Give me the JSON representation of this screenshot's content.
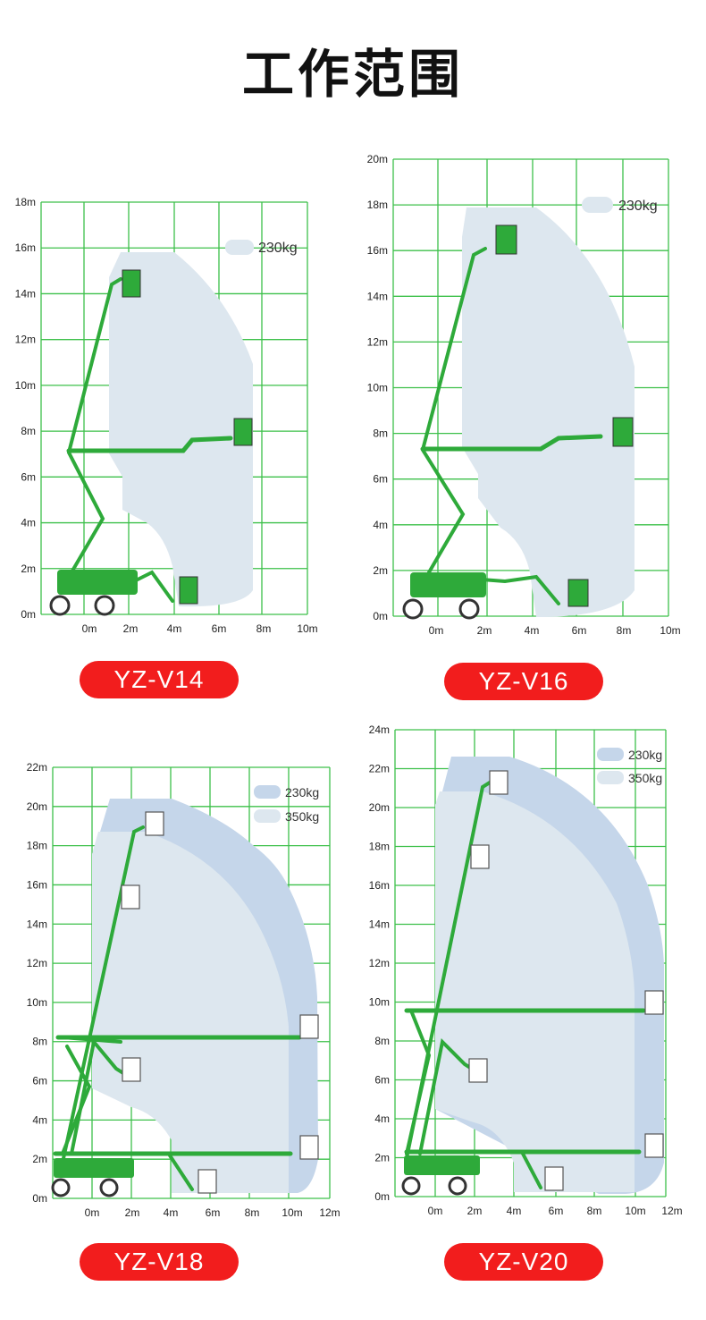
{
  "title": "工作范围",
  "colors": {
    "grid": "#3dc04a",
    "machine": "#2eaa3a",
    "load_230": "#c5d6ea",
    "load_350": "#dde7ef",
    "label_bg": "#f21d1d"
  },
  "panels": [
    {
      "model": "YZ-V14",
      "y_ticks": [
        "0m",
        "2m",
        "4m",
        "6m",
        "8m",
        "10m",
        "12m",
        "14m",
        "16m",
        "18m"
      ],
      "x_ticks": [
        "0m",
        "2m",
        "4m",
        "6m",
        "8m",
        "10m"
      ],
      "legend": [
        {
          "label": "230kg"
        }
      ]
    },
    {
      "model": "YZ-V16",
      "y_ticks": [
        "0m",
        "2m",
        "4m",
        "6m",
        "8m",
        "10m",
        "12m",
        "14m",
        "16m",
        "18m",
        "20m"
      ],
      "x_ticks": [
        "0m",
        "2m",
        "4m",
        "6m",
        "8m",
        "10m"
      ],
      "legend": [
        {
          "label": "230kg"
        }
      ]
    },
    {
      "model": "YZ-V18",
      "y_ticks": [
        "0m",
        "2m",
        "4m",
        "6m",
        "8m",
        "10m",
        "12m",
        "14m",
        "16m",
        "18m",
        "20m",
        "22m"
      ],
      "x_ticks": [
        "0m",
        "2m",
        "4m",
        "6m",
        "8m",
        "10m",
        "12m"
      ],
      "legend": [
        {
          "label": "230kg"
        },
        {
          "label": "350kg"
        }
      ]
    },
    {
      "model": "YZ-V20",
      "y_ticks": [
        "0m",
        "2m",
        "4m",
        "6m",
        "8m",
        "10m",
        "12m",
        "14m",
        "16m",
        "18m",
        "20m",
        "22m",
        "24m"
      ],
      "x_ticks": [
        "0m",
        "2m",
        "4m",
        "6m",
        "8m",
        "10m",
        "12m"
      ],
      "legend": [
        {
          "label": "230kg"
        },
        {
          "label": "350kg"
        }
      ]
    }
  ]
}
